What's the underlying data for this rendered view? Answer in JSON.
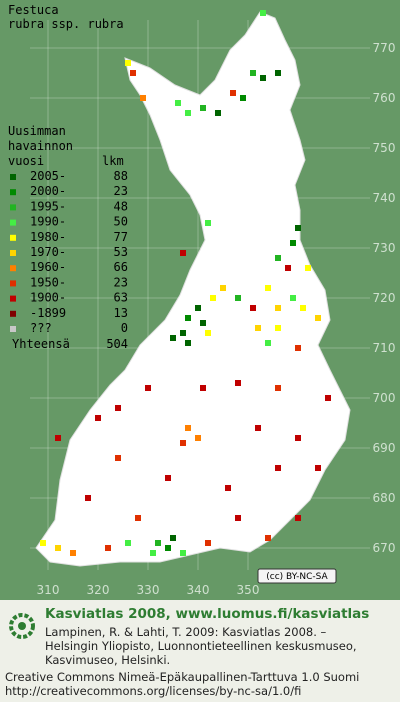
{
  "title": [
    "Festuca",
    "rubra ssp. rubra"
  ],
  "legend": {
    "header": [
      "Uusimman",
      "havainnon",
      "vuosi"
    ],
    "count_header": "lkm",
    "rows": [
      {
        "label": "2005-",
        "count": 88,
        "color": "#006400",
        "squares": [
          [
            353,
            764
          ],
          [
            356,
            765
          ],
          [
            344,
            757
          ],
          [
            360,
            734
          ],
          [
            340,
            718
          ],
          [
            341,
            715
          ],
          [
            335,
            712
          ],
          [
            337,
            713
          ],
          [
            338,
            711
          ],
          [
            335,
            672
          ]
        ]
      },
      {
        "label": "2000-",
        "count": 23,
        "color": "#008a00",
        "squares": [
          [
            349,
            760
          ],
          [
            359,
            731
          ],
          [
            338,
            716
          ],
          [
            334,
            670
          ]
        ]
      },
      {
        "label": "1995-",
        "count": 48,
        "color": "#22b422",
        "squares": [
          [
            351,
            765
          ],
          [
            341,
            758
          ],
          [
            356,
            728
          ],
          [
            348,
            720
          ],
          [
            332,
            671
          ]
        ]
      },
      {
        "label": "1990-",
        "count": 50,
        "color": "#44ee44",
        "squares": [
          [
            353,
            777
          ],
          [
            336,
            759
          ],
          [
            338,
            757
          ],
          [
            342,
            735
          ],
          [
            359,
            720
          ],
          [
            354,
            711
          ],
          [
            331,
            669
          ],
          [
            337,
            669
          ],
          [
            326,
            671
          ]
        ]
      },
      {
        "label": "1980-",
        "count": 77,
        "color": "#ffff00",
        "squares": [
          [
            326,
            767
          ],
          [
            343,
            720
          ],
          [
            354,
            722
          ],
          [
            361,
            718
          ],
          [
            362,
            726
          ],
          [
            342,
            713
          ],
          [
            356,
            714
          ],
          [
            309,
            671
          ]
        ]
      },
      {
        "label": "1970-",
        "count": 53,
        "color": "#ffd400",
        "squares": [
          [
            345,
            722
          ],
          [
            356,
            718
          ],
          [
            364,
            716
          ],
          [
            352,
            714
          ],
          [
            312,
            670
          ]
        ]
      },
      {
        "label": "1960-",
        "count": 66,
        "color": "#ff8000",
        "squares": [
          [
            329,
            760
          ],
          [
            338,
            694
          ],
          [
            340,
            692
          ],
          [
            315,
            669
          ]
        ]
      },
      {
        "label": "1950-",
        "count": 23,
        "color": "#e03000",
        "squares": [
          [
            347,
            761
          ],
          [
            327,
            765
          ],
          [
            360,
            710
          ],
          [
            356,
            702
          ],
          [
            337,
            691
          ],
          [
            324,
            688
          ],
          [
            328,
            676
          ],
          [
            342,
            671
          ],
          [
            354,
            672
          ],
          [
            322,
            670
          ]
        ]
      },
      {
        "label": "1900-",
        "count": 63,
        "color": "#c00000",
        "squares": [
          [
            358,
            726
          ],
          [
            337,
            729
          ],
          [
            351,
            718
          ],
          [
            341,
            702
          ],
          [
            348,
            703
          ],
          [
            330,
            702
          ],
          [
            366,
            700
          ],
          [
            320,
            696
          ],
          [
            352,
            694
          ],
          [
            360,
            692
          ],
          [
            334,
            684
          ],
          [
            346,
            682
          ],
          [
            356,
            686
          ],
          [
            318,
            680
          ],
          [
            348,
            676
          ],
          [
            360,
            676
          ],
          [
            364,
            686
          ],
          [
            324,
            698
          ],
          [
            312,
            692
          ]
        ]
      },
      {
        "label": "-1899",
        "count": 13,
        "color": "#800000",
        "squares": []
      },
      {
        "label": "???",
        "count": 0,
        "color": "#c8c8c8",
        "squares": []
      }
    ],
    "total_label": "Yhteensä",
    "total": 504
  },
  "grid": {
    "yticks": [
      770,
      760,
      750,
      740,
      730,
      720,
      710,
      700,
      690,
      680,
      670
    ],
    "xticks": [
      310,
      320,
      330,
      340,
      350
    ]
  },
  "license_badge": "(cc) BY-NC-SA",
  "footer": {
    "heading": "Kasviatlas 2008, www.luomus.fi/kasviatlas",
    "citation": [
      "Lampinen, R. & Lahti, T. 2009: Kasviatlas 2008. –",
      "Helsingin Yliopisto, Luonnontieteellinen keskusmuseo,",
      "Kasvimuseo, Helsinki."
    ],
    "license": [
      "Creative Commons Nimeä-Epäkaupallinen-Tarttuva 1.0 Suomi",
      "http://creativecommons.org/licenses/by-nc-sa/1.0/fi"
    ]
  }
}
